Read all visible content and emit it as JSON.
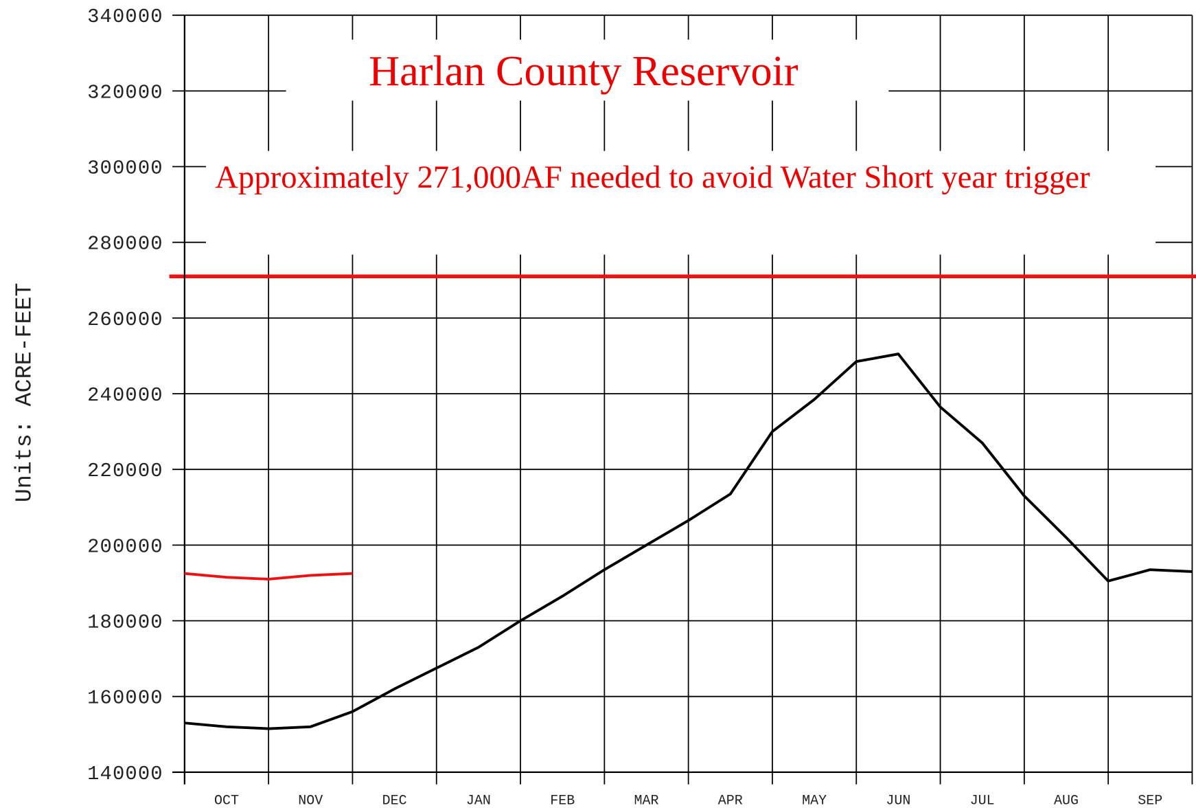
{
  "chart_data": {
    "type": "line",
    "title": "Harlan County Reservoir",
    "annotation": "Approximately 271,000AF needed to avoid Water Short year trigger",
    "ylabel": "Units: ACRE-FEET",
    "categories": [
      null,
      "OCT",
      null,
      "NOV",
      null,
      "DEC",
      null,
      "JAN",
      null,
      "FEB",
      null,
      "MAR",
      null,
      "APR",
      null,
      "MAY",
      null,
      "JUN",
      null,
      "JUL",
      null,
      "AUG",
      null,
      "SEP",
      null
    ],
    "series": [
      {
        "color": "#000000",
        "values": [
          153000,
          152000,
          151500,
          152000,
          156000,
          162000,
          167500,
          173000,
          180000,
          186500,
          193500,
          200000,
          206500,
          213500,
          230000,
          238500,
          248500,
          250500,
          236500,
          227000,
          213000,
          202000,
          190500,
          193500,
          193000
        ]
      },
      {
        "color": "#ee1111",
        "values": [
          192500,
          191500,
          191000,
          192000,
          192500,
          null,
          null,
          null,
          null,
          null,
          null,
          null,
          null,
          null,
          null,
          null,
          null,
          null,
          null,
          null,
          null,
          null,
          null,
          null,
          null
        ]
      }
    ],
    "threshold": 271000,
    "threshold_color": "#ee1111",
    "ylim": [
      140000,
      340000
    ],
    "yticks": [
      140000,
      160000,
      180000,
      200000,
      220000,
      240000,
      260000,
      280000,
      300000,
      320000,
      340000
    ],
    "grid": true
  }
}
